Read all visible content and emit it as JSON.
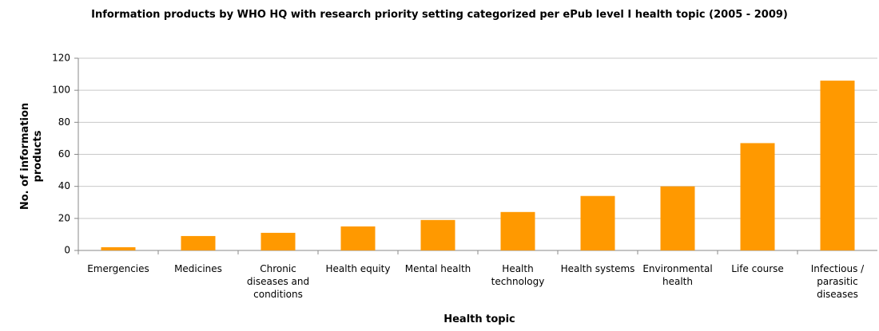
{
  "chart_data": {
    "type": "bar",
    "title": "Information products by WHO HQ with research priority setting categorized per ePub level I health topic (2005 - 2009)",
    "x_label": "Health topic",
    "y_label": "No. of information products",
    "categories": [
      "Emergencies",
      "Medicines",
      "Chronic diseases and conditions",
      "Health equity",
      "Mental health",
      "Health technology",
      "Health systems",
      "Environmental health",
      "Life course",
      "Infectious / parasitic diseases"
    ],
    "values": [
      2,
      9,
      11,
      15,
      19,
      24,
      34,
      40,
      67,
      106
    ],
    "color": "#ff9900",
    "ylim": [
      0,
      120
    ],
    "yticks": [
      0,
      20,
      40,
      60,
      80,
      100,
      120
    ],
    "grid": true
  }
}
